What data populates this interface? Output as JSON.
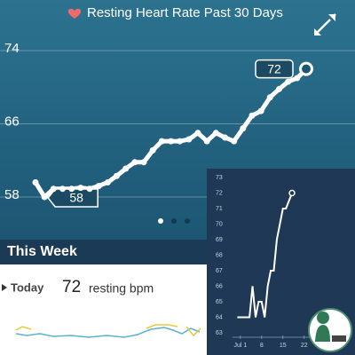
{
  "header": {
    "title": "Resting Heart Rate Past 30 Days"
  },
  "chart_data": [
    {
      "type": "line",
      "color": "#ffffff",
      "values": [
        59.6,
        58,
        58.9,
        58.9,
        58.9,
        59,
        58.9,
        59.2,
        59.6,
        60.3,
        61.1,
        61.8,
        61.8,
        63.1,
        64.1,
        64.1,
        64.1,
        64.3,
        65,
        64.1,
        65,
        64.5,
        64.1,
        65.5,
        66.9,
        67.4,
        68.9,
        69.8,
        70.6,
        71,
        72
      ],
      "value_labels": [
        null,
        "58",
        null,
        null,
        null,
        null,
        null,
        null,
        null,
        null,
        null,
        null,
        null,
        null,
        null,
        null,
        null,
        null,
        null,
        null,
        null,
        null,
        null,
        null,
        null,
        null,
        null,
        null,
        null,
        null,
        "72"
      ],
      "ylim": [
        56,
        76
      ],
      "yticks": [
        58,
        66,
        74
      ],
      "grid": true
    },
    {
      "type": "line",
      "color": "#ffffff",
      "x": [
        0,
        3,
        4,
        5,
        6,
        7,
        8,
        9,
        10,
        11,
        12,
        13,
        14,
        15,
        16,
        18
      ],
      "values": [
        64,
        64,
        64,
        66,
        64,
        65,
        65,
        64,
        66,
        67,
        67,
        69,
        70,
        71,
        71,
        72
      ],
      "xlim": [
        -1,
        25
      ],
      "ylim": [
        63,
        73
      ],
      "xticks": [
        {
          "value": 1,
          "label": "Jul 1"
        },
        8,
        15,
        22
      ],
      "yticks": [
        63,
        64,
        65,
        66,
        67,
        68,
        69,
        70,
        71,
        72,
        73
      ]
    }
  ],
  "week": {
    "title": "This Week",
    "today_label": "Today",
    "today_value": 72,
    "today_unit": "resting bpm"
  }
}
